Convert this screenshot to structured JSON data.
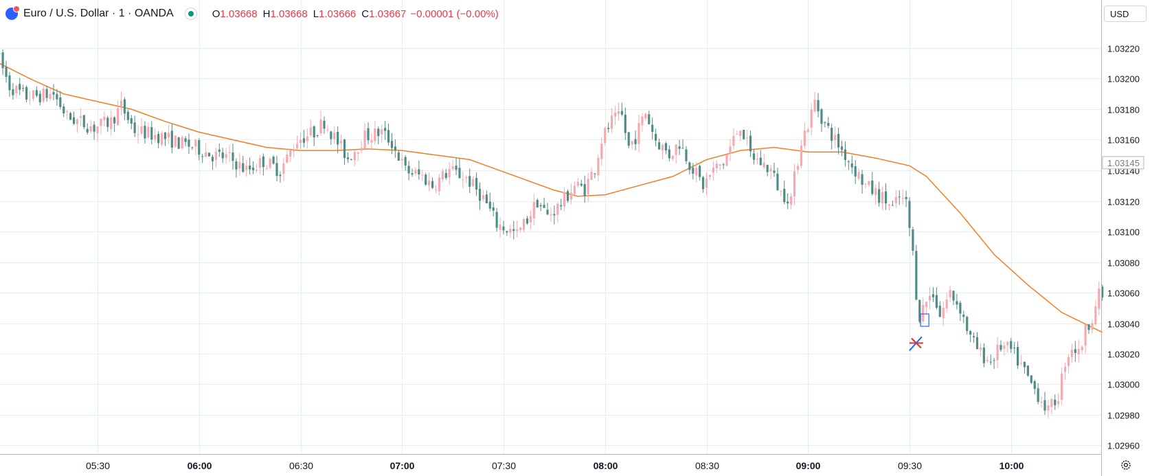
{
  "legend": {
    "title": "Euro / U.S. Dollar · 1 · OANDA",
    "open_label": "O",
    "open": "1.03668",
    "high_label": "H",
    "high": "1.03668",
    "low_label": "L",
    "low": "1.03666",
    "close_label": "C",
    "close": "1.03667",
    "change": "−0.00001 (−0.00%)"
  },
  "currency": "USD",
  "colors": {
    "up": "#f7a9b0",
    "down": "#4f8c86",
    "ma": "#f57c22",
    "grid": "#e3f0f3",
    "text": "#131722"
  },
  "chart_data": {
    "type": "candlestick",
    "ylim": [
      1.0295,
      1.03235
    ],
    "y_ticks": [
      "1.03220",
      "1.03200",
      "1.03180",
      "1.03160",
      "1.03140",
      "1.03120",
      "1.03100",
      "1.03080",
      "1.03060",
      "1.03040",
      "1.03020",
      "1.03000",
      "1.02980",
      "1.02960"
    ],
    "x_ticks": [
      {
        "label": "05:30",
        "minute": 0,
        "bold": false
      },
      {
        "label": "06:00",
        "minute": 30,
        "bold": true
      },
      {
        "label": "06:30",
        "minute": 60,
        "bold": false
      },
      {
        "label": "07:00",
        "minute": 90,
        "bold": true
      },
      {
        "label": "07:30",
        "minute": 120,
        "bold": false
      },
      {
        "label": "08:00",
        "minute": 150,
        "bold": true
      },
      {
        "label": "08:30",
        "minute": 180,
        "bold": false
      },
      {
        "label": "09:00",
        "minute": 210,
        "bold": true
      },
      {
        "label": "09:30",
        "minute": 240,
        "bold": false
      },
      {
        "label": "10:00",
        "minute": 270,
        "bold": true
      }
    ],
    "x_range_minutes": [
      -29,
      297
    ],
    "current_price": "1.03145",
    "ma_points": [
      [
        -29,
        1.0321
      ],
      [
        -20,
        1.032
      ],
      [
        -10,
        1.0319
      ],
      [
        0,
        1.03185
      ],
      [
        10,
        1.0318
      ],
      [
        20,
        1.03172
      ],
      [
        30,
        1.03165
      ],
      [
        40,
        1.0316
      ],
      [
        50,
        1.03155
      ],
      [
        60,
        1.03153
      ],
      [
        70,
        1.03153
      ],
      [
        80,
        1.03154
      ],
      [
        90,
        1.03153
      ],
      [
        100,
        1.0315
      ],
      [
        110,
        1.03147
      ],
      [
        115,
        1.03143
      ],
      [
        125,
        1.03135
      ],
      [
        135,
        1.03127
      ],
      [
        142,
        1.03123
      ],
      [
        150,
        1.03124
      ],
      [
        160,
        1.0313
      ],
      [
        170,
        1.03136
      ],
      [
        180,
        1.03147
      ],
      [
        190,
        1.03153
      ],
      [
        200,
        1.03155
      ],
      [
        210,
        1.03152
      ],
      [
        220,
        1.03152
      ],
      [
        230,
        1.03148
      ],
      [
        240,
        1.03143
      ],
      [
        245,
        1.03136
      ],
      [
        255,
        1.03112
      ],
      [
        265,
        1.03085
      ],
      [
        275,
        1.03065
      ],
      [
        285,
        1.03047
      ],
      [
        297,
        1.03034
      ]
    ],
    "key_points": [
      [
        -29,
        1.03218
      ],
      [
        -25,
        1.03195
      ],
      [
        -20,
        1.03188
      ],
      [
        -12,
        1.0319
      ],
      [
        -8,
        1.03175
      ],
      [
        0,
        1.03168
      ],
      [
        5,
        1.03172
      ],
      [
        8,
        1.03182
      ],
      [
        12,
        1.03166
      ],
      [
        20,
        1.03162
      ],
      [
        25,
        1.03158
      ],
      [
        30,
        1.03155
      ],
      [
        35,
        1.0315
      ],
      [
        40,
        1.03148
      ],
      [
        45,
        1.0314
      ],
      [
        50,
        1.03146
      ],
      [
        55,
        1.0314
      ],
      [
        60,
        1.0316
      ],
      [
        65,
        1.03165
      ],
      [
        68,
        1.03172
      ],
      [
        72,
        1.03158
      ],
      [
        75,
        1.03148
      ],
      [
        80,
        1.03162
      ],
      [
        85,
        1.03165
      ],
      [
        88,
        1.03158
      ],
      [
        92,
        1.0314
      ],
      [
        97,
        1.03136
      ],
      [
        100,
        1.0313
      ],
      [
        105,
        1.0314
      ],
      [
        110,
        1.03135
      ],
      [
        115,
        1.03122
      ],
      [
        119,
        1.03105
      ],
      [
        125,
        1.03098
      ],
      [
        128,
        1.03108
      ],
      [
        131,
        1.0312
      ],
      [
        134,
        1.0311
      ],
      [
        138,
        1.03118
      ],
      [
        142,
        1.0313
      ],
      [
        145,
        1.03128
      ],
      [
        148,
        1.03142
      ],
      [
        150,
        1.0316
      ],
      [
        153,
        1.03172
      ],
      [
        156,
        1.03175
      ],
      [
        158,
        1.03155
      ],
      [
        160,
        1.03162
      ],
      [
        163,
        1.03178
      ],
      [
        166,
        1.0316
      ],
      [
        170,
        1.0315
      ],
      [
        173,
        1.03158
      ],
      [
        176,
        1.03145
      ],
      [
        180,
        1.0313
      ],
      [
        183,
        1.0314
      ],
      [
        186,
        1.03145
      ],
      [
        189,
        1.0316
      ],
      [
        191,
        1.0317
      ],
      [
        194,
        1.0315
      ],
      [
        197,
        1.03145
      ],
      [
        200,
        1.0314
      ],
      [
        203,
        1.03125
      ],
      [
        206,
        1.03122
      ],
      [
        209,
        1.0316
      ],
      [
        211,
        1.0317
      ],
      [
        213,
        1.03185
      ],
      [
        216,
        1.0317
      ],
      [
        219,
        1.0316
      ],
      [
        222,
        1.0315
      ],
      [
        225,
        1.0314
      ],
      [
        228,
        1.0313
      ],
      [
        231,
        1.03125
      ],
      [
        234,
        1.0312
      ],
      [
        236,
        1.03115
      ],
      [
        238,
        1.03122
      ],
      [
        240,
        1.03118
      ],
      [
        241,
        1.03102
      ],
      [
        242,
        1.03085
      ],
      [
        243,
        1.0306
      ],
      [
        244,
        1.03045
      ],
      [
        246,
        1.03055
      ],
      [
        248,
        1.0306
      ],
      [
        250,
        1.03045
      ],
      [
        253,
        1.0306
      ],
      [
        256,
        1.0305
      ],
      [
        259,
        1.0303
      ],
      [
        262,
        1.0302
      ],
      [
        265,
        1.03015
      ],
      [
        268,
        1.03025
      ],
      [
        271,
        1.03022
      ],
      [
        274,
        1.03012
      ],
      [
        277,
        1.03
      ],
      [
        280,
        1.0299
      ],
      [
        282,
        1.02982
      ],
      [
        285,
        1.02993
      ],
      [
        287,
        1.03015
      ],
      [
        289,
        1.03025
      ],
      [
        291,
        1.0302
      ],
      [
        293,
        1.03035
      ],
      [
        295,
        1.03045
      ],
      [
        297,
        1.03058
      ]
    ]
  }
}
